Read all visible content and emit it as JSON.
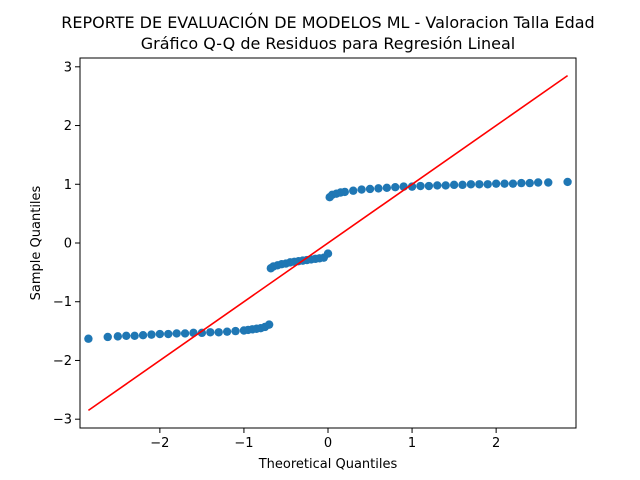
{
  "chart_data": {
    "type": "scatter",
    "title": "REPORTE DE EVALUACIÓN DE MODELOS ML - Valoracion Talla Edad",
    "subtitle": "Gráfico Q-Q de Residuos para Regresión Lineal",
    "xlabel": "Theoretical Quantiles",
    "ylabel": "Sample Quantiles",
    "xlim": [
      -2.95,
      2.95
    ],
    "ylim": [
      -3.15,
      3.15
    ],
    "xticks": [
      -2,
      -1,
      0,
      1,
      2
    ],
    "yticks": [
      -3,
      -2,
      -1,
      0,
      1,
      2,
      3
    ],
    "xtick_labels": [
      "−2",
      "−1",
      "0",
      "1",
      "2"
    ],
    "ytick_labels": [
      "−3",
      "−2",
      "−1",
      "0",
      "1",
      "2",
      "3"
    ],
    "grid": false,
    "colors": {
      "points": "#1f77b4",
      "reference_line": "#ff0000"
    },
    "reference_line": {
      "x": [
        -2.85,
        2.85
      ],
      "y": [
        -2.85,
        2.85
      ]
    },
    "series": [
      {
        "x": [
          -2.85,
          -2.62,
          -2.5,
          -2.4,
          -2.3,
          -2.2,
          -2.1,
          -2.0,
          -1.9,
          -1.8,
          -1.7,
          -1.6,
          -1.5,
          -1.4,
          -1.3,
          -1.2,
          -1.1,
          -1.0,
          -0.95,
          -0.9,
          -0.85,
          -0.8,
          -0.75,
          -0.7,
          -0.68,
          -0.65,
          -0.6,
          -0.55,
          -0.5,
          -0.45,
          -0.4,
          -0.35,
          -0.3,
          -0.25,
          -0.2,
          -0.15,
          -0.1,
          -0.05,
          0.0,
          0.02,
          0.05,
          0.1,
          0.15,
          0.2,
          0.3,
          0.4,
          0.5,
          0.6,
          0.7,
          0.8,
          0.9,
          1.0,
          1.1,
          1.2,
          1.3,
          1.4,
          1.5,
          1.6,
          1.7,
          1.8,
          1.9,
          2.0,
          2.1,
          2.2,
          2.3,
          2.4,
          2.5,
          2.62,
          2.85
        ],
        "y": [
          -1.63,
          -1.6,
          -1.59,
          -1.58,
          -1.58,
          -1.57,
          -1.56,
          -1.55,
          -1.55,
          -1.54,
          -1.54,
          -1.53,
          -1.53,
          -1.52,
          -1.52,
          -1.51,
          -1.5,
          -1.49,
          -1.48,
          -1.47,
          -1.46,
          -1.45,
          -1.43,
          -1.39,
          -0.43,
          -0.4,
          -0.38,
          -0.36,
          -0.35,
          -0.33,
          -0.32,
          -0.31,
          -0.3,
          -0.29,
          -0.28,
          -0.27,
          -0.26,
          -0.25,
          -0.18,
          0.78,
          0.82,
          0.84,
          0.86,
          0.87,
          0.89,
          0.91,
          0.92,
          0.93,
          0.94,
          0.95,
          0.96,
          0.96,
          0.97,
          0.97,
          0.98,
          0.98,
          0.99,
          0.99,
          1.0,
          1.0,
          1.0,
          1.01,
          1.01,
          1.01,
          1.02,
          1.02,
          1.03,
          1.03,
          1.04
        ]
      }
    ]
  }
}
